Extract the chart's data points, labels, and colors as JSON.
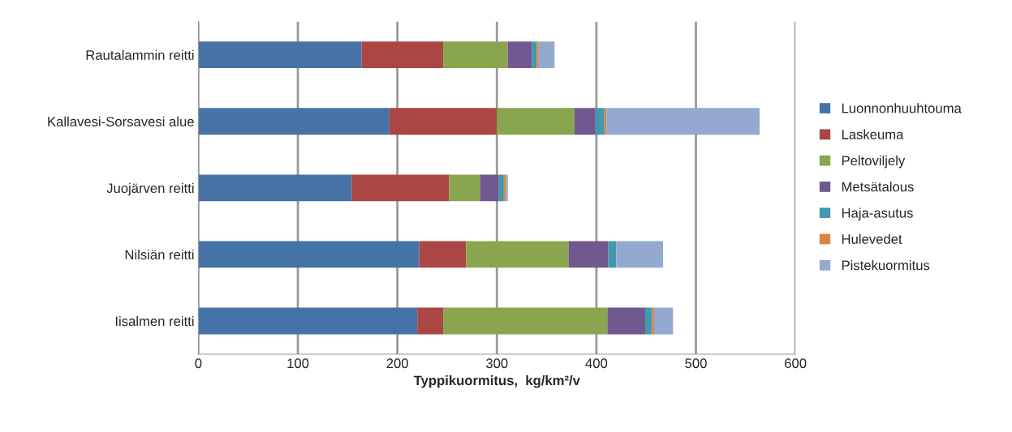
{
  "chart_data": {
    "type": "bar",
    "orientation": "horizontal",
    "stacked": true,
    "xlabel": "Typpikuormitus,  kg/km²/v",
    "categories": [
      "Rautalammin reitti",
      "Kallavesi-Sorsavesi alue",
      "Juojärven reitti",
      "Nilsiän reitti",
      "Iisalmen reitti"
    ],
    "series": [
      {
        "name": "Luonnonhuuhtouma",
        "color": "#4572a7",
        "values": [
          164,
          192,
          154,
          222,
          220
        ]
      },
      {
        "name": "Laskeuma",
        "color": "#aa4643",
        "values": [
          82,
          108,
          98,
          47,
          26
        ]
      },
      {
        "name": "Peltoviljely",
        "color": "#89a54e",
        "values": [
          65,
          78,
          31,
          103,
          165
        ]
      },
      {
        "name": "Metsätalous",
        "color": "#71588f",
        "values": [
          24,
          21,
          19,
          40,
          38
        ]
      },
      {
        "name": "Haja-asutus",
        "color": "#4198af",
        "values": [
          5,
          9,
          5,
          8,
          7
        ]
      },
      {
        "name": "Hulevedet",
        "color": "#db843d",
        "values": [
          2,
          2,
          2,
          0,
          2
        ]
      },
      {
        "name": "Pistekuormitus",
        "color": "#93a9cf",
        "values": [
          16,
          154,
          2,
          47,
          19
        ]
      }
    ],
    "xlim": [
      0,
      600
    ],
    "xticks": [
      0,
      100,
      200,
      300,
      400,
      500,
      600
    ],
    "grid": "x",
    "legend": "right"
  }
}
